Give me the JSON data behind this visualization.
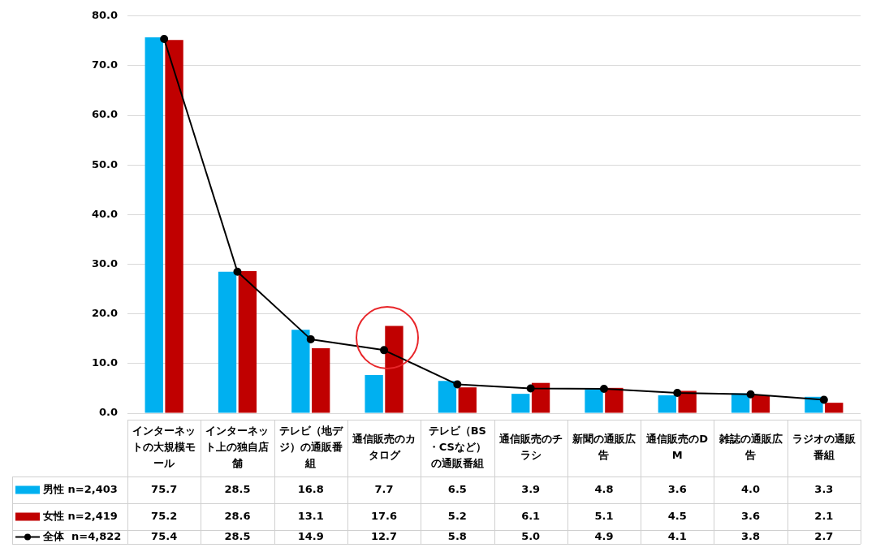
{
  "chart_data": {
    "type": "bar",
    "categories": [
      "インターネットの大規模モール",
      "インターネット上の独自店舗",
      "テレビ（地デジ）の通販番組",
      "通信販売のカタログ",
      "テレビ（BS・CSなど）の通販番組",
      "通信販売のチラシ",
      "新聞の通販広告",
      "通信販売のDM",
      "雑誌の通販広告",
      "ラジオの通販番組"
    ],
    "series": [
      {
        "name": "男性 n=2,403",
        "color": "#00b0f0",
        "values": [
          75.7,
          28.5,
          16.8,
          7.7,
          6.5,
          3.9,
          4.8,
          3.6,
          4.0,
          3.3
        ],
        "value_labels": [
          "75.7",
          "28.5",
          "16.8",
          "7.7",
          "6.5",
          "3.9",
          "4.8",
          "3.6",
          "4.0",
          "3.3"
        ]
      },
      {
        "name": "女性 n=2,419",
        "color": "#c00000",
        "values": [
          75.2,
          28.6,
          13.1,
          17.6,
          5.2,
          6.1,
          5.1,
          4.5,
          3.6,
          2.1
        ],
        "value_labels": [
          "75.2",
          "28.6",
          "13.1",
          "17.6",
          "5.2",
          "6.1",
          "5.1",
          "4.5",
          "3.6",
          "2.1"
        ]
      },
      {
        "name": "全体  n=4,822",
        "type": "line",
        "color": "#000000",
        "marker": "circle",
        "values": [
          75.4,
          28.5,
          14.9,
          12.7,
          5.8,
          5.0,
          4.9,
          4.1,
          3.8,
          2.7
        ],
        "value_labels": [
          "75.4",
          "28.5",
          "14.9",
          "12.7",
          "5.8",
          "5.0",
          "4.9",
          "4.1",
          "3.8",
          "2.7"
        ]
      }
    ],
    "ylim": [
      0,
      80
    ],
    "yticks": [
      {
        "value": 0,
        "label": "0.0"
      },
      {
        "value": 10,
        "label": "10.0"
      },
      {
        "value": 20,
        "label": "20.0"
      },
      {
        "value": 30,
        "label": "30.0"
      },
      {
        "value": 40,
        "label": "40.0"
      },
      {
        "value": 50,
        "label": "50.0"
      },
      {
        "value": 60,
        "label": "60.0"
      },
      {
        "value": 70,
        "label": "70.0"
      },
      {
        "value": 80,
        "label": "80.0"
      }
    ],
    "grid": "y",
    "legend": "bottom left"
  }
}
